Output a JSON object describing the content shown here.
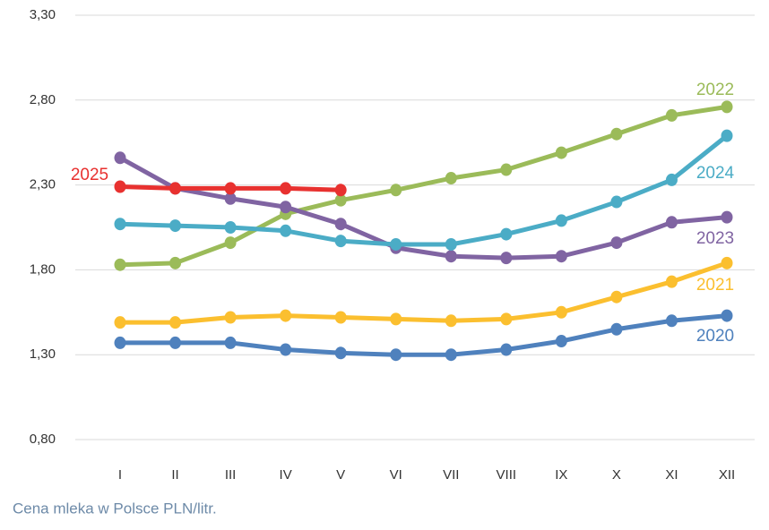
{
  "chart_data": {
    "type": "line",
    "source": "Cena mleka w Polsce PLN/litr.",
    "categories": [
      "I",
      "II",
      "III",
      "IV",
      "V",
      "VI",
      "VII",
      "VIII",
      "IX",
      "X",
      "XI",
      "XII"
    ],
    "series": [
      {
        "name": "2020",
        "color": "#4f81bd",
        "values": [
          1.37,
          1.37,
          1.37,
          1.33,
          1.31,
          1.3,
          1.3,
          1.33,
          1.38,
          1.45,
          1.5,
          1.53
        ]
      },
      {
        "name": "2021",
        "color": "#fbbf2f",
        "values": [
          1.49,
          1.49,
          1.52,
          1.53,
          1.52,
          1.51,
          1.5,
          1.51,
          1.55,
          1.64,
          1.73,
          1.84
        ]
      },
      {
        "name": "2022",
        "color": "#9bbb59",
        "values": [
          1.83,
          1.84,
          1.96,
          2.13,
          2.21,
          2.27,
          2.34,
          2.39,
          2.49,
          2.6,
          2.71,
          2.76
        ]
      },
      {
        "name": "2023",
        "color": "#8064a2",
        "values": [
          2.46,
          2.28,
          2.22,
          2.17,
          2.07,
          1.93,
          1.88,
          1.87,
          1.88,
          1.96,
          2.08,
          2.11
        ]
      },
      {
        "name": "2024",
        "color": "#4bacc6",
        "values": [
          2.07,
          2.06,
          2.05,
          2.03,
          1.97,
          1.95,
          1.95,
          2.01,
          2.09,
          2.2,
          2.33,
          2.59
        ]
      },
      {
        "name": "2025",
        "color": "#e8312f",
        "values": [
          2.29,
          2.28,
          2.28,
          2.28,
          2.27,
          null,
          null,
          null,
          null,
          null,
          null,
          null
        ]
      }
    ],
    "ylim": [
      0.8,
      3.3
    ],
    "yticks": [
      {
        "value": 0.8,
        "label": "0,80"
      },
      {
        "value": 1.3,
        "label": "1,30"
      },
      {
        "value": 1.8,
        "label": "1,80"
      },
      {
        "value": 2.3,
        "label": "2,30"
      },
      {
        "value": 2.8,
        "label": "2,80"
      },
      {
        "value": 3.3,
        "label": "3,30"
      }
    ],
    "grid": true
  }
}
